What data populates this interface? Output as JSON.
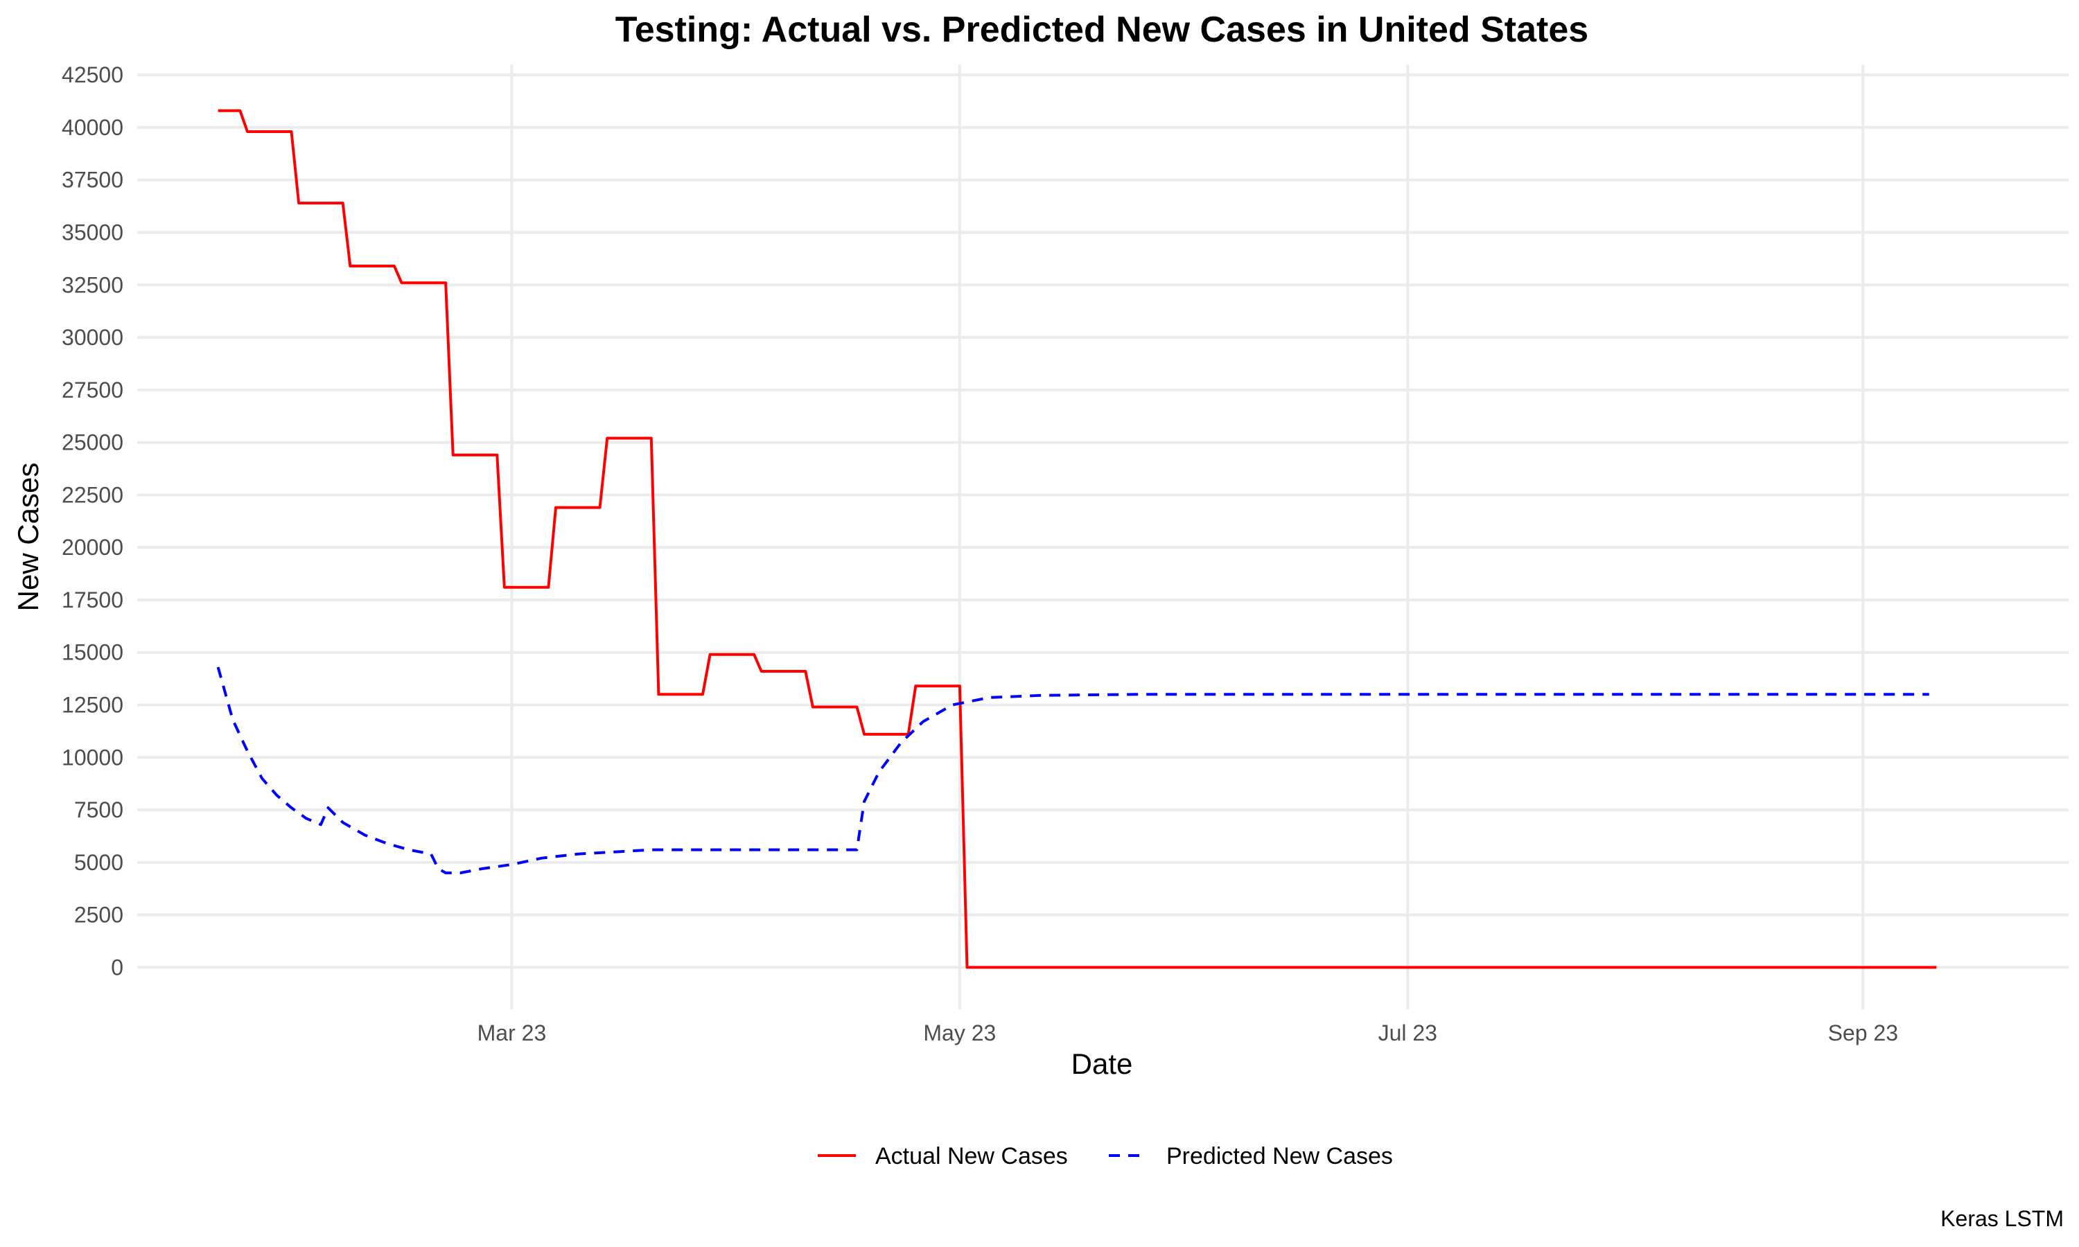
{
  "chart_data": {
    "type": "line",
    "title": "Testing: Actual vs. Predicted New Cases in United States",
    "xlabel": "Date",
    "ylabel": "New Cases",
    "caption": "Keras LSTM",
    "xlim": [
      "2023-01-09",
      "2023-09-29"
    ],
    "ylim": [
      -2000,
      43000
    ],
    "x_ticks": [
      {
        "date": "2023-03-01",
        "label": "Mar 23"
      },
      {
        "date": "2023-05-01",
        "label": "May 23"
      },
      {
        "date": "2023-07-01",
        "label": "Jul 23"
      },
      {
        "date": "2023-09-01",
        "label": "Sep 23"
      }
    ],
    "y_ticks": [
      0,
      2500,
      5000,
      7500,
      10000,
      12500,
      15000,
      17500,
      20000,
      22500,
      25000,
      27500,
      30000,
      32500,
      35000,
      37500,
      40000,
      42500
    ],
    "grid": true,
    "legend_position": "bottom",
    "series": [
      {
        "name": "Actual New Cases",
        "color": "#ff0000",
        "dash": "solid",
        "points": [
          [
            "2023-01-20",
            40800
          ],
          [
            "2023-01-23",
            40800
          ],
          [
            "2023-01-24",
            39800
          ],
          [
            "2023-01-30",
            39800
          ],
          [
            "2023-01-31",
            36400
          ],
          [
            "2023-02-06",
            36400
          ],
          [
            "2023-02-07",
            33400
          ],
          [
            "2023-02-13",
            33400
          ],
          [
            "2023-02-14",
            32600
          ],
          [
            "2023-02-20",
            32600
          ],
          [
            "2023-02-21",
            24400
          ],
          [
            "2023-02-27",
            24400
          ],
          [
            "2023-02-28",
            18100
          ],
          [
            "2023-03-06",
            18100
          ],
          [
            "2023-03-07",
            21900
          ],
          [
            "2023-03-13",
            21900
          ],
          [
            "2023-03-14",
            25200
          ],
          [
            "2023-03-20",
            25200
          ],
          [
            "2023-03-21",
            13000
          ],
          [
            "2023-03-27",
            13000
          ],
          [
            "2023-03-28",
            14900
          ],
          [
            "2023-04-03",
            14900
          ],
          [
            "2023-04-04",
            14100
          ],
          [
            "2023-04-10",
            14100
          ],
          [
            "2023-04-11",
            12400
          ],
          [
            "2023-04-17",
            12400
          ],
          [
            "2023-04-18",
            11100
          ],
          [
            "2023-04-24",
            11100
          ],
          [
            "2023-04-25",
            13400
          ],
          [
            "2023-05-01",
            13400
          ],
          [
            "2023-05-02",
            0
          ],
          [
            "2023-09-11",
            0
          ]
        ]
      },
      {
        "name": "Predicted New Cases",
        "color": "#0000ff",
        "dash": "dashed",
        "points": [
          [
            "2023-01-20",
            14300
          ],
          [
            "2023-01-22",
            11800
          ],
          [
            "2023-01-24",
            10300
          ],
          [
            "2023-01-26",
            9000
          ],
          [
            "2023-01-28",
            8200
          ],
          [
            "2023-01-30",
            7600
          ],
          [
            "2023-02-01",
            7100
          ],
          [
            "2023-02-03",
            6800
          ],
          [
            "2023-02-04",
            7600
          ],
          [
            "2023-02-06",
            6900
          ],
          [
            "2023-02-09",
            6300
          ],
          [
            "2023-02-12",
            5900
          ],
          [
            "2023-02-15",
            5600
          ],
          [
            "2023-02-18",
            5400
          ],
          [
            "2023-02-19",
            4700
          ],
          [
            "2023-02-20",
            4500
          ],
          [
            "2023-02-22",
            4500
          ],
          [
            "2023-02-25",
            4700
          ],
          [
            "2023-03-01",
            4900
          ],
          [
            "2023-03-05",
            5200
          ],
          [
            "2023-03-10",
            5400
          ],
          [
            "2023-03-15",
            5500
          ],
          [
            "2023-03-20",
            5600
          ],
          [
            "2023-03-30",
            5600
          ],
          [
            "2023-04-10",
            5600
          ],
          [
            "2023-04-17",
            5600
          ],
          [
            "2023-04-18",
            7900
          ],
          [
            "2023-04-20",
            9300
          ],
          [
            "2023-04-23",
            10700
          ],
          [
            "2023-04-26",
            11700
          ],
          [
            "2023-04-30",
            12500
          ],
          [
            "2023-05-05",
            12850
          ],
          [
            "2023-05-12",
            12950
          ],
          [
            "2023-05-25",
            13000
          ],
          [
            "2023-09-10",
            13000
          ]
        ]
      }
    ]
  }
}
